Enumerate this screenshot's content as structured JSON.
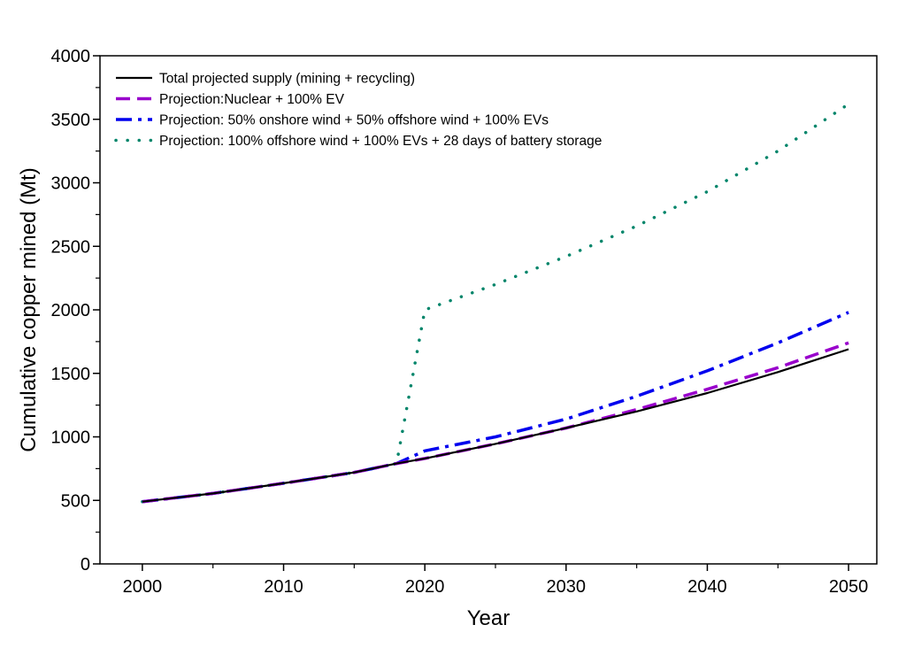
{
  "chart_data": {
    "type": "line",
    "title": "",
    "xlabel": "Year",
    "ylabel": "Cumulative copper mined (Mt)",
    "xlim": [
      1997,
      2052
    ],
    "ylim": [
      0,
      4000
    ],
    "xticks": [
      2000,
      2010,
      2020,
      2030,
      2040,
      2050
    ],
    "xtick_labels": [
      "2000",
      "2010",
      "2020",
      "2030",
      "2040",
      "2050"
    ],
    "yticks": [
      0,
      500,
      1000,
      1500,
      2000,
      2500,
      3000,
      3500,
      4000
    ],
    "ytick_labels": [
      "0",
      "500",
      "1000",
      "1500",
      "2000",
      "2500",
      "3000",
      "3500",
      "4000"
    ],
    "grid": false,
    "legend_position": "top-left",
    "series": [
      {
        "name": "Total projected supply (mining + recycling)",
        "color": "#000000",
        "style": "solid",
        "x": [
          2000,
          2005,
          2010,
          2015,
          2018,
          2020,
          2025,
          2030,
          2035,
          2040,
          2045,
          2050
        ],
        "y": [
          490,
          555,
          635,
          720,
          790,
          830,
          945,
          1070,
          1200,
          1345,
          1510,
          1690
        ]
      },
      {
        "name": "Projection:Nuclear + 100% EV",
        "color": "#9900cc",
        "style": "dash",
        "x": [
          2000,
          2005,
          2010,
          2015,
          2018,
          2020,
          2025,
          2030,
          2035,
          2040,
          2045,
          2050
        ],
        "y": [
          490,
          555,
          635,
          720,
          790,
          830,
          945,
          1070,
          1215,
          1375,
          1545,
          1740
        ]
      },
      {
        "name": "Projection: 50% onshore wind + 50% offshore wind + 100% EVs",
        "color": "#0000ee",
        "style": "dashdot",
        "x": [
          2000,
          2005,
          2010,
          2015,
          2018,
          2020,
          2025,
          2030,
          2035,
          2040,
          2045,
          2050
        ],
        "y": [
          490,
          555,
          635,
          720,
          790,
          890,
          1000,
          1140,
          1320,
          1520,
          1740,
          1980
        ]
      },
      {
        "name": "Projection: 100% offshore wind + 100% EVs + 28 days of battery storage",
        "color": "#00856a",
        "style": "dot",
        "x": [
          2000,
          2005,
          2010,
          2015,
          2018,
          2020,
          2025,
          2030,
          2035,
          2040,
          2045,
          2050
        ],
        "y": [
          490,
          555,
          635,
          720,
          790,
          2000,
          2200,
          2420,
          2660,
          2930,
          3250,
          3620
        ]
      }
    ]
  }
}
